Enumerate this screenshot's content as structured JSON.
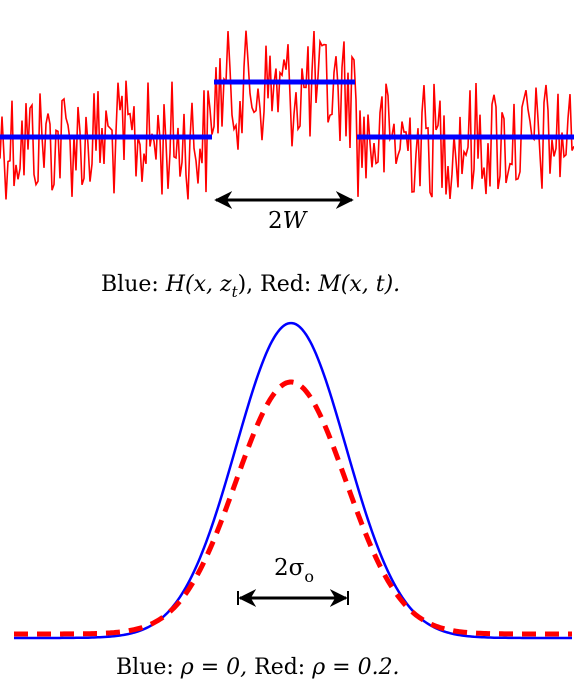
{
  "top_panel": {
    "width_label": {
      "num": "2",
      "var": "W"
    },
    "caption": {
      "blue_prefix": "Blue: ",
      "blue_expr": "H(x, z",
      "blue_sub": "t",
      "blue_close": "),",
      "red_prefix": " Red: ",
      "red_expr": "M(x, t).",
      "full": "Blue: H(x, z_t), Red: M(x, t)."
    },
    "colors": {
      "step": "#0000ff",
      "noise": "#ff0000",
      "arrow": "#000000"
    }
  },
  "bottom_panel": {
    "width_label": {
      "num": "2",
      "sym": "σ",
      "sub": "o"
    },
    "caption": {
      "blue_prefix": "Blue: ",
      "blue_expr": "ρ = 0,",
      "red_prefix": " Red: ",
      "red_expr": "ρ = 0.2.",
      "full": "Blue: ρ = 0, Red: ρ = 0.2."
    },
    "colors": {
      "solid": "#0000ff",
      "dashed": "#ff0000",
      "arrow": "#000000"
    }
  }
}
